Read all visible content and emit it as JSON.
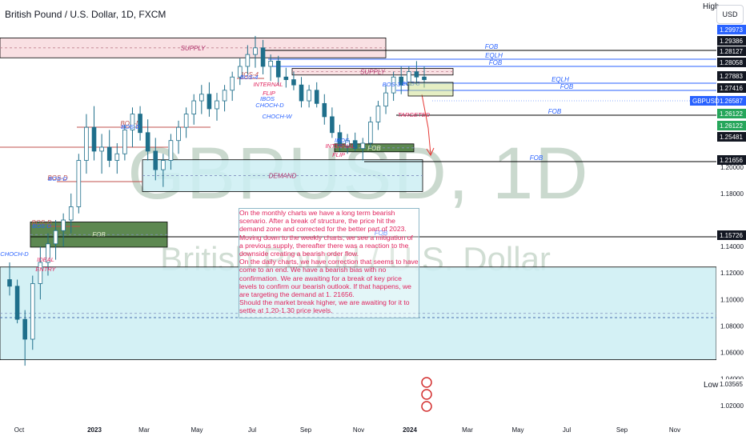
{
  "header": {
    "title": "British Pound / U.S. Dollar, 1D, FXCM",
    "currency": "USD",
    "high_label": "High",
    "low_label": "Low"
  },
  "watermark": {
    "symbol": "GBPUSD, 1D",
    "name": "British Pound / U.S. Dollar"
  },
  "colors": {
    "up": "#1f6f8b",
    "down": "#1f6f8b",
    "supply": "#f7d8dc",
    "demand": "#cdeef3",
    "fob_fill": "#4b7b3e",
    "label_pink": "#e0245e",
    "line_blue": "#2962ff"
  },
  "analysis_text": [
    "On the monthly charts we have a long term bearish scenario. After a break of structure, the price hit the demand zone and corrected for the better part of 2023.",
    "Moving down to the weekly charts, we see a mitigation of a previous supply, thereafter there was a reaction to the downside creating a bearish order flow.",
    "On the daily charts, we have correction that seems to have come to an end. We have a bearish bias with no confirmation. We are awaiting for a break of key price levels to confirm our bearish outlook. If that happens, we are targeting the  demand at 1. 21656.",
    "Should the market break higher, we are awaiting for it to settle at 1.20-1.30 price levels."
  ],
  "chart_data": {
    "type": "candlestick",
    "title": "British Pound / U.S. Dollar, 1D, FXCM",
    "y_axis": {
      "ylim": [
        1.012,
        1.305
      ],
      "ticks": [
        "1.20000",
        "1.18000",
        "1.14000",
        "1.12000",
        "1.10000",
        "1.08000",
        "1.06000",
        "1.04000",
        "1.02000"
      ]
    },
    "x_axis": {
      "labels": [
        "Oct",
        "2023",
        "Mar",
        "May",
        "Jul",
        "Sep",
        "Nov",
        "2024",
        "Mar",
        "May",
        "Jul",
        "Sep",
        "Nov"
      ]
    },
    "price_markers": [
      {
        "value": "1.29973",
        "style": "blue"
      },
      {
        "value": "1.29386",
        "style": "black"
      },
      {
        "value": "1.28127",
        "style": "black"
      },
      {
        "value": "1.28058",
        "style": "black"
      },
      {
        "value": "1.27883",
        "style": "black"
      },
      {
        "value": "1.27416",
        "style": "black"
      },
      {
        "value": "1.26587",
        "style": "blue",
        "tag": "GBPUSD"
      },
      {
        "value": "1.26122",
        "style": "green"
      },
      {
        "value": "1.26122",
        "style": "green"
      },
      {
        "value": "1.25481",
        "style": "black"
      },
      {
        "value": "1.21656",
        "style": "black"
      },
      {
        "value": "1.15726",
        "style": "black"
      },
      {
        "value": "1.03565",
        "style": "plain"
      }
    ],
    "zones": [
      {
        "label": "SUPPLY",
        "kind": "supply",
        "from": "Oct",
        "to": "Jul",
        "y_top": 1.2975,
        "y_bottom": 1.2825
      },
      {
        "label": "SUPPLY",
        "kind": "supply",
        "from": "Jul",
        "to": "2024",
        "y_top": 1.2745,
        "y_bottom": 1.2695
      },
      {
        "label": "DEMAND",
        "kind": "demand",
        "from": "2023",
        "to": "Nov",
        "y_top": 1.2055,
        "y_bottom": 1.1815
      },
      {
        "label": "",
        "kind": "demand",
        "from": "Oct",
        "to": "Nov",
        "y_top": 1.1245,
        "y_bottom": 1.0545
      },
      {
        "label": "FOB",
        "kind": "fob",
        "from": "Oct",
        "to": "Mar",
        "y_top": 1.1585,
        "y_bottom": 1.1395
      },
      {
        "label": "FOB",
        "kind": "fob",
        "from": "Nov",
        "to": "2024",
        "y_top": 1.2175,
        "y_bottom": 1.2115
      }
    ],
    "annotations": [
      "SUPPLY",
      "SUPPLY",
      "DEMAND",
      "FOB",
      "FOB",
      "FOB",
      "FOB",
      "FOB",
      "FOB",
      "FOB",
      "EQLH",
      "EQLH",
      "BOS-D",
      "BOS-D",
      "BOS-D",
      "BOS-4",
      "BOS-3",
      "BOS-3",
      "IBOS",
      "IBOS",
      "CHOCH-D",
      "CHOCH-D",
      "CHOCH-W",
      "INTERNAL",
      "FLIP",
      "INTERNAL",
      "FLIP",
      "IDEAL",
      "ENTRY",
      "TARGETED"
    ],
    "series": [
      {
        "name": "GBPUSD",
        "values": [
          [
            1.115,
            1.128,
            1.103,
            1.11
          ],
          [
            1.11,
            1.115,
            1.082,
            1.085
          ],
          [
            1.085,
            1.092,
            1.05,
            1.07
          ],
          [
            1.07,
            1.118,
            1.062,
            1.112
          ],
          [
            1.112,
            1.14,
            1.1,
            1.128
          ],
          [
            1.128,
            1.15,
            1.118,
            1.142
          ],
          [
            1.142,
            1.16,
            1.13,
            1.152
          ],
          [
            1.152,
            1.165,
            1.14,
            1.16
          ],
          [
            1.16,
            1.18,
            1.15,
            1.17
          ],
          [
            1.17,
            1.21,
            1.165,
            1.205
          ],
          [
            1.205,
            1.24,
            1.195,
            1.23
          ],
          [
            1.23,
            1.246,
            1.205,
            1.212
          ],
          [
            1.212,
            1.225,
            1.195,
            1.215
          ],
          [
            1.215,
            1.228,
            1.2,
            1.205
          ],
          [
            1.205,
            1.218,
            1.195,
            1.21
          ],
          [
            1.21,
            1.232,
            1.205,
            1.228
          ],
          [
            1.228,
            1.245,
            1.215,
            1.24
          ],
          [
            1.24,
            1.246,
            1.22,
            1.226
          ],
          [
            1.226,
            1.236,
            1.205,
            1.212
          ],
          [
            1.212,
            1.222,
            1.19,
            1.198
          ],
          [
            1.198,
            1.21,
            1.185,
            1.205
          ],
          [
            1.205,
            1.225,
            1.198,
            1.22
          ],
          [
            1.22,
            1.235,
            1.21,
            1.23
          ],
          [
            1.23,
            1.245,
            1.222,
            1.24
          ],
          [
            1.24,
            1.255,
            1.232,
            1.25
          ],
          [
            1.25,
            1.262,
            1.24,
            1.255
          ],
          [
            1.255,
            1.264,
            1.238,
            1.244
          ],
          [
            1.244,
            1.256,
            1.235,
            1.25
          ],
          [
            1.25,
            1.262,
            1.242,
            1.258
          ],
          [
            1.258,
            1.272,
            1.25,
            1.268
          ],
          [
            1.268,
            1.282,
            1.262,
            1.276
          ],
          [
            1.276,
            1.292,
            1.27,
            1.285
          ],
          [
            1.285,
            1.299,
            1.275,
            1.29
          ],
          [
            1.29,
            1.296,
            1.27,
            1.276
          ],
          [
            1.276,
            1.285,
            1.265,
            1.28
          ],
          [
            1.28,
            1.284,
            1.262,
            1.268
          ],
          [
            1.268,
            1.275,
            1.26,
            1.266
          ],
          [
            1.266,
            1.272,
            1.258,
            1.262
          ],
          [
            1.262,
            1.268,
            1.245,
            1.25
          ],
          [
            1.25,
            1.262,
            1.245,
            1.258
          ],
          [
            1.258,
            1.264,
            1.245,
            1.248
          ],
          [
            1.248,
            1.255,
            1.232,
            1.238
          ],
          [
            1.238,
            1.245,
            1.222,
            1.226
          ],
          [
            1.226,
            1.232,
            1.212,
            1.216
          ],
          [
            1.216,
            1.225,
            1.21,
            1.22
          ],
          [
            1.22,
            1.226,
            1.212,
            1.214
          ],
          [
            1.214,
            1.222,
            1.205,
            1.218
          ],
          [
            1.218,
            1.238,
            1.215,
            1.234
          ],
          [
            1.234,
            1.25,
            1.228,
            1.246
          ],
          [
            1.246,
            1.262,
            1.24,
            1.256
          ],
          [
            1.256,
            1.272,
            1.25,
            1.268
          ],
          [
            1.268,
            1.276,
            1.255,
            1.262
          ],
          [
            1.262,
            1.276,
            1.258,
            1.272
          ],
          [
            1.272,
            1.28,
            1.262,
            1.268
          ],
          [
            1.268,
            1.276,
            1.26,
            1.266
          ]
        ]
      }
    ]
  }
}
